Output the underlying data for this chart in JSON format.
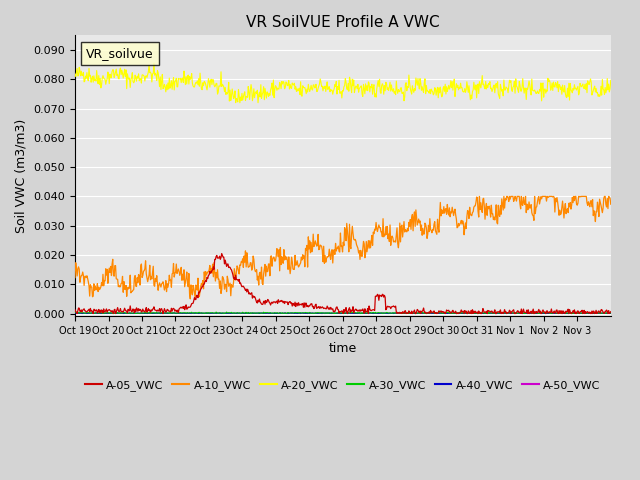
{
  "title": "VR SoilVUE Profile A VWC",
  "xlabel": "time",
  "ylabel": "Soil VWC (m3/m3)",
  "ylim": [
    -0.001,
    0.095
  ],
  "yticks": [
    0.0,
    0.01,
    0.02,
    0.03,
    0.04,
    0.05,
    0.06,
    0.07,
    0.08,
    0.09
  ],
  "legend_label": "VR_soilvue",
  "tick_labels": [
    "Oct 19",
    "Oct 20",
    "Oct 21",
    "Oct 22",
    "Oct 23",
    "Oct 24",
    "Oct 25",
    "Oct 26",
    "Oct 27",
    "Oct 28",
    "Oct 29",
    "Oct 30",
    "Oct 31",
    "Nov 1",
    "Nov 2",
    "Nov 3"
  ],
  "legend_colors": [
    "#cc0000",
    "#ff8800",
    "#ffff00",
    "#00cc00",
    "#0000cc",
    "#cc00cc"
  ],
  "legend_labels": [
    "A-05_VWC",
    "A-10_VWC",
    "A-20_VWC",
    "A-30_VWC",
    "A-40_VWC",
    "A-50_VWC"
  ],
  "fig_bg_color": "#d4d4d4",
  "plot_bg_color": "#e8e8e8",
  "grid_color": "white",
  "num_days": 16,
  "seed": 42
}
